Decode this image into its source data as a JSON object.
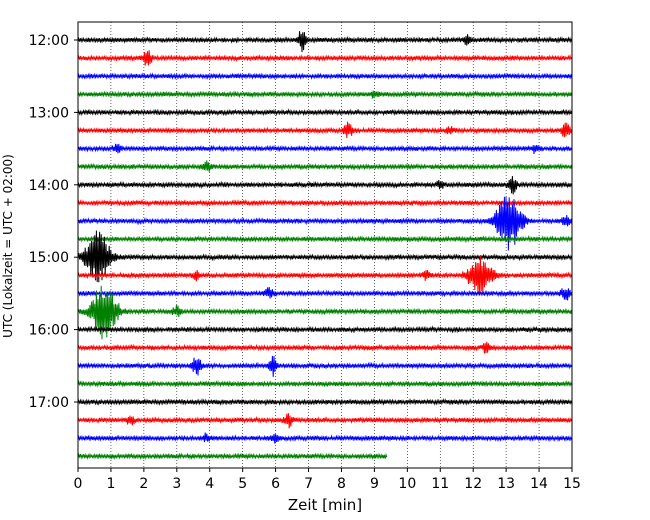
{
  "chart_data": {
    "type": "line",
    "title": "",
    "xlabel": "Zeit  [min]",
    "ylabel": "UTC (Lokalzeit = UTC + 02:00)",
    "xlim": [
      0,
      15
    ],
    "x_ticks": [
      0,
      1,
      2,
      3,
      4,
      5,
      6,
      7,
      8,
      9,
      10,
      11,
      12,
      13,
      14,
      15
    ],
    "x_tick_labels": [
      "0",
      "1",
      "2",
      "3",
      "4",
      "5",
      "6",
      "7",
      "8",
      "9",
      "10",
      "11",
      "12",
      "13",
      "14",
      "15"
    ],
    "y_tick_labels": [
      "12:00",
      "13:00",
      "14:00",
      "15:00",
      "16:00",
      "17:00"
    ],
    "grid": "vertical dotted",
    "trace_start": "12:00",
    "trace_minutes": 15,
    "trace_colors": [
      "#000000",
      "#ff0000",
      "#0000ff",
      "#008000"
    ],
    "traces": [
      {
        "start": "12:00",
        "color": "black",
        "end_min": 15,
        "events": [
          {
            "t": 6.8,
            "amp": 10
          },
          {
            "t": 11.8,
            "amp": 5
          }
        ]
      },
      {
        "start": "12:15",
        "color": "red",
        "end_min": 15,
        "events": [
          {
            "t": 2.1,
            "amp": 9
          }
        ]
      },
      {
        "start": "12:30",
        "color": "blue",
        "end_min": 15,
        "events": []
      },
      {
        "start": "12:45",
        "color": "green",
        "end_min": 15,
        "events": [
          {
            "t": 9.0,
            "amp": 3
          }
        ]
      },
      {
        "start": "13:00",
        "color": "black",
        "end_min": 15,
        "events": []
      },
      {
        "start": "13:15",
        "color": "red",
        "end_min": 15,
        "events": [
          {
            "t": 8.2,
            "amp": 7
          },
          {
            "t": 11.3,
            "amp": 4
          },
          {
            "t": 14.8,
            "amp": 8
          }
        ]
      },
      {
        "start": "13:30",
        "color": "blue",
        "end_min": 15,
        "events": [
          {
            "t": 1.2,
            "amp": 4
          },
          {
            "t": 13.9,
            "amp": 4
          }
        ]
      },
      {
        "start": "13:45",
        "color": "green",
        "end_min": 15,
        "events": [
          {
            "t": 3.9,
            "amp": 5
          }
        ]
      },
      {
        "start": "14:00",
        "color": "black",
        "end_min": 15,
        "events": [
          {
            "t": 11.0,
            "amp": 4
          },
          {
            "t": 13.2,
            "amp": 8
          }
        ]
      },
      {
        "start": "14:15",
        "color": "red",
        "end_min": 15,
        "events": []
      },
      {
        "start": "14:30",
        "color": "blue",
        "end_min": 15,
        "events": [
          {
            "t": 12.8,
            "amp": 6
          },
          {
            "t": 13.1,
            "amp": 28
          },
          {
            "t": 14.8,
            "amp": 6
          }
        ]
      },
      {
        "start": "14:45",
        "color": "green",
        "end_min": 15,
        "events": []
      },
      {
        "start": "15:00",
        "color": "black",
        "end_min": 15,
        "events": [
          {
            "t": 0.6,
            "amp": 26
          }
        ]
      },
      {
        "start": "15:15",
        "color": "red",
        "end_min": 15,
        "events": [
          {
            "t": 3.6,
            "amp": 4
          },
          {
            "t": 10.6,
            "amp": 5
          },
          {
            "t": 12.2,
            "amp": 18
          }
        ]
      },
      {
        "start": "15:30",
        "color": "blue",
        "end_min": 15,
        "events": [
          {
            "t": 5.8,
            "amp": 5
          },
          {
            "t": 14.8,
            "amp": 7
          }
        ]
      },
      {
        "start": "15:45",
        "color": "green",
        "end_min": 15,
        "events": [
          {
            "t": 0.8,
            "amp": 30
          },
          {
            "t": 3.0,
            "amp": 5
          }
        ]
      },
      {
        "start": "16:00",
        "color": "black",
        "end_min": 15,
        "events": []
      },
      {
        "start": "16:15",
        "color": "red",
        "end_min": 15,
        "events": [
          {
            "t": 12.4,
            "amp": 5
          }
        ]
      },
      {
        "start": "16:30",
        "color": "blue",
        "end_min": 15,
        "events": [
          {
            "t": 3.6,
            "amp": 10
          },
          {
            "t": 5.9,
            "amp": 10
          }
        ]
      },
      {
        "start": "16:45",
        "color": "green",
        "end_min": 15,
        "events": []
      },
      {
        "start": "17:00",
        "color": "black",
        "end_min": 15,
        "events": []
      },
      {
        "start": "17:15",
        "color": "red",
        "end_min": 15,
        "events": [
          {
            "t": 1.6,
            "amp": 4
          },
          {
            "t": 6.4,
            "amp": 7
          }
        ]
      },
      {
        "start": "17:30",
        "color": "blue",
        "end_min": 15,
        "events": [
          {
            "t": 3.9,
            "amp": 4
          },
          {
            "t": 6.0,
            "amp": 4
          }
        ]
      },
      {
        "start": "17:45",
        "color": "green",
        "end_min": 9.4,
        "events": []
      }
    ]
  }
}
